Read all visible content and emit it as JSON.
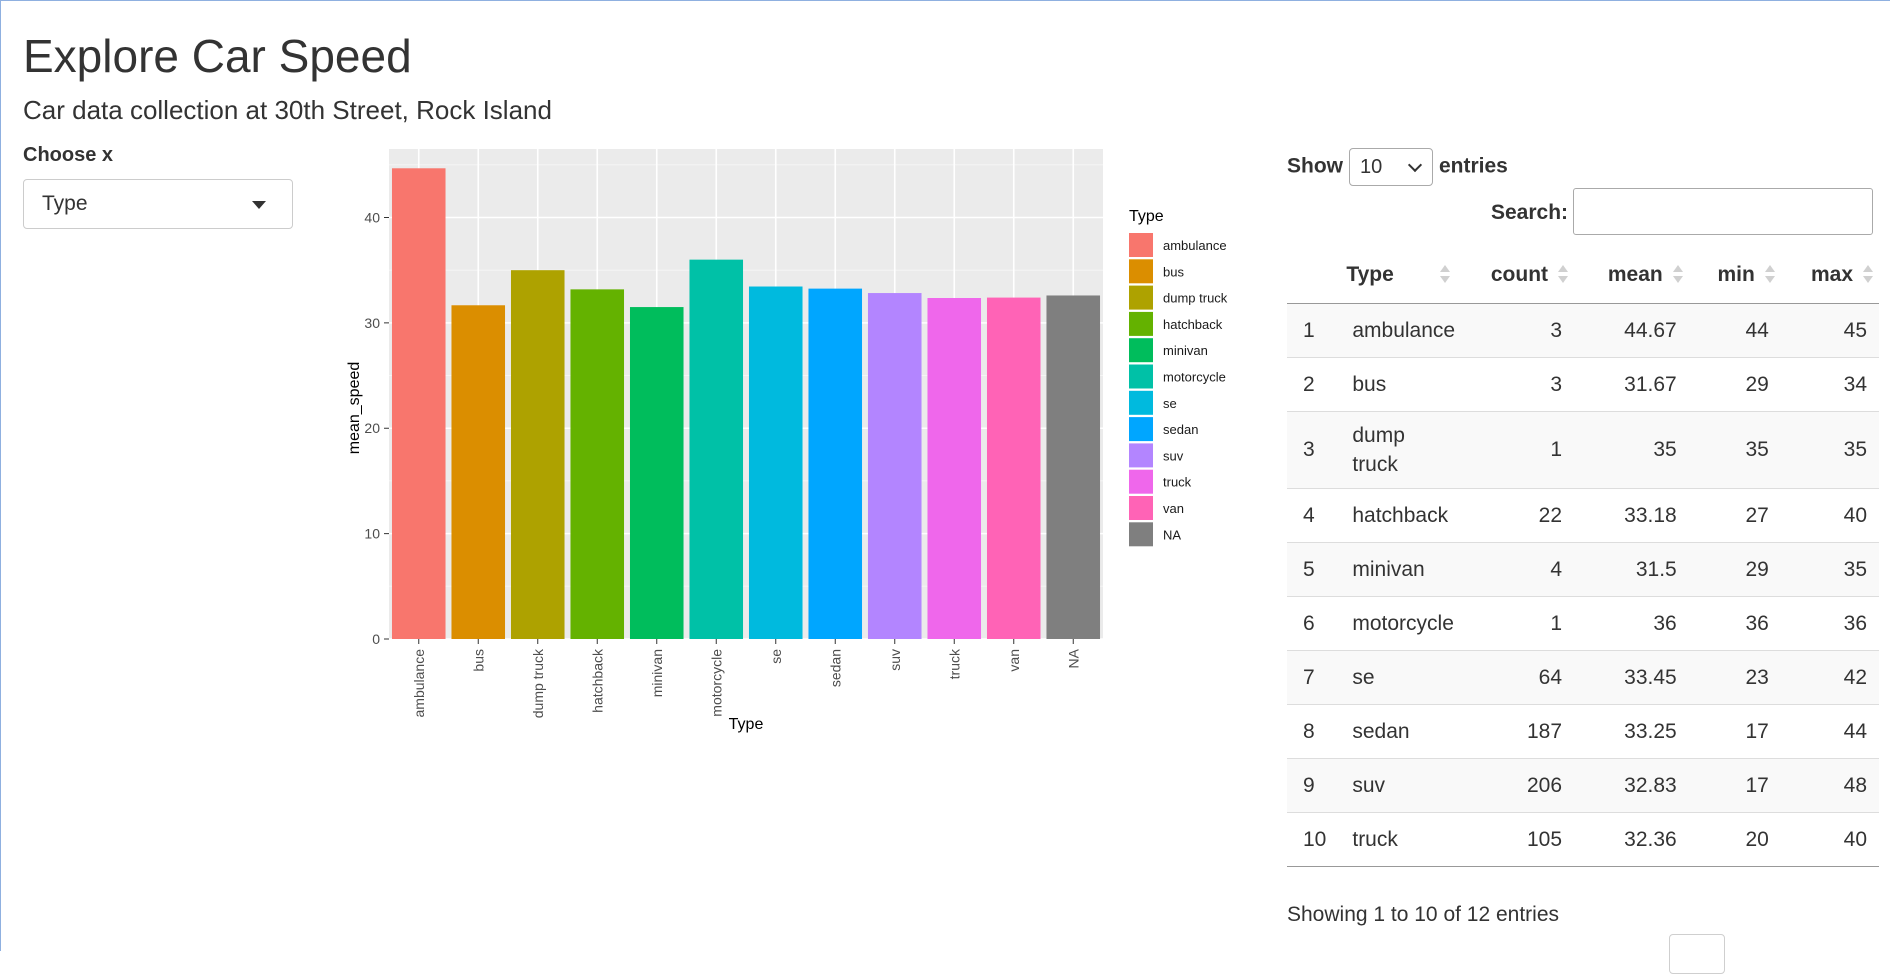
{
  "header": {
    "title": "Explore Car Speed",
    "subtitle": "Car data collection at 30th Street, Rock Island"
  },
  "sidebar": {
    "choose_label": "Choose x",
    "selected_value": "Type",
    "caret_icon": "caret-down-icon"
  },
  "chart_data": {
    "type": "bar",
    "xlabel": "Type",
    "ylabel": "mean_speed",
    "ylim": [
      0,
      46.5
    ],
    "yticks": [
      0,
      10,
      20,
      30,
      40
    ],
    "legend_title": "Type",
    "legend_position": "right",
    "grid": true,
    "categories": [
      "ambulance",
      "bus",
      "dump truck",
      "hatchback",
      "minivan",
      "motorcycle",
      "se",
      "sedan",
      "suv",
      "truck",
      "van",
      "NA"
    ],
    "values": [
      44.67,
      31.67,
      35,
      33.18,
      31.5,
      36,
      33.45,
      33.25,
      32.83,
      32.36,
      32.4,
      32.6
    ],
    "colors": [
      "#F8766D",
      "#DB8E00",
      "#AEA200",
      "#64B200",
      "#00BD5C",
      "#00C1A7",
      "#00BADE",
      "#00A6FF",
      "#B385FF",
      "#EF67EB",
      "#FF63B6",
      "#7F7F7F"
    ]
  },
  "table": {
    "length_prefix": "Show",
    "length_value": "10",
    "length_suffix": "entries",
    "search_label": "Search:",
    "search_value": "",
    "columns": [
      "Type",
      "count",
      "mean",
      "min",
      "max"
    ],
    "rows": [
      {
        "idx": "1",
        "type": "ambulance",
        "count": "3",
        "mean": "44.67",
        "min": "44",
        "max": "45"
      },
      {
        "idx": "2",
        "type": "bus",
        "count": "3",
        "mean": "31.67",
        "min": "29",
        "max": "34"
      },
      {
        "idx": "3",
        "type": "dump truck",
        "count": "1",
        "mean": "35",
        "min": "35",
        "max": "35"
      },
      {
        "idx": "4",
        "type": "hatchback",
        "count": "22",
        "mean": "33.18",
        "min": "27",
        "max": "40"
      },
      {
        "idx": "5",
        "type": "minivan",
        "count": "4",
        "mean": "31.5",
        "min": "29",
        "max": "35"
      },
      {
        "idx": "6",
        "type": "motorcycle",
        "count": "1",
        "mean": "36",
        "min": "36",
        "max": "36"
      },
      {
        "idx": "7",
        "type": "se",
        "count": "64",
        "mean": "33.45",
        "min": "23",
        "max": "42"
      },
      {
        "idx": "8",
        "type": "sedan",
        "count": "187",
        "mean": "33.25",
        "min": "17",
        "max": "44"
      },
      {
        "idx": "9",
        "type": "suv",
        "count": "206",
        "mean": "32.83",
        "min": "17",
        "max": "48"
      },
      {
        "idx": "10",
        "type": "truck",
        "count": "105",
        "mean": "32.36",
        "min": "20",
        "max": "40"
      }
    ],
    "info": "Showing 1 to 10 of 12 entries"
  }
}
